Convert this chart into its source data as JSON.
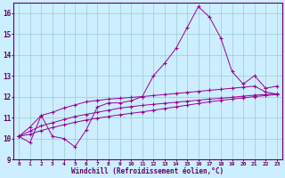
{
  "xlabel": "Windchill (Refroidissement éolien,°C)",
  "x_values": [
    0,
    1,
    2,
    3,
    4,
    5,
    6,
    7,
    8,
    9,
    10,
    11,
    12,
    13,
    14,
    15,
    16,
    17,
    18,
    19,
    20,
    21,
    22,
    23
  ],
  "line1_y": [
    10.1,
    9.8,
    11.1,
    10.1,
    10.0,
    9.6,
    10.4,
    11.5,
    11.7,
    11.7,
    11.8,
    12.0,
    13.0,
    13.6,
    14.3,
    15.3,
    16.3,
    15.8,
    14.8,
    13.2,
    12.6,
    13.0,
    12.4,
    12.5
  ],
  "line2_y": [
    10.1,
    10.55,
    11.1,
    11.25,
    11.45,
    11.6,
    11.75,
    11.82,
    11.88,
    11.92,
    11.96,
    12.0,
    12.05,
    12.1,
    12.15,
    12.2,
    12.25,
    12.3,
    12.35,
    12.4,
    12.45,
    12.5,
    12.22,
    12.12
  ],
  "line3_y": [
    10.1,
    10.35,
    10.6,
    10.75,
    10.9,
    11.05,
    11.15,
    11.25,
    11.35,
    11.45,
    11.52,
    11.58,
    11.63,
    11.68,
    11.73,
    11.78,
    11.83,
    11.88,
    11.92,
    11.97,
    12.02,
    12.07,
    12.1,
    12.13
  ],
  "line4_y": [
    10.1,
    10.2,
    10.38,
    10.52,
    10.65,
    10.77,
    10.88,
    10.97,
    11.05,
    11.13,
    11.2,
    11.27,
    11.35,
    11.43,
    11.51,
    11.59,
    11.67,
    11.75,
    11.82,
    11.88,
    11.94,
    12.0,
    12.05,
    12.1
  ],
  "line_color": "#990099",
  "bg_color": "#cceeff",
  "grid_color": "#99cccc",
  "axes_color": "#660066",
  "tick_color": "#660066",
  "ylim": [
    9.0,
    16.5
  ],
  "xlim_min": -0.5,
  "xlim_max": 23.5,
  "yticks": [
    9,
    10,
    11,
    12,
    13,
    14,
    15,
    16
  ],
  "xticks": [
    0,
    1,
    2,
    3,
    4,
    5,
    6,
    7,
    8,
    9,
    10,
    11,
    12,
    13,
    14,
    15,
    16,
    17,
    18,
    19,
    20,
    21,
    22,
    23
  ]
}
